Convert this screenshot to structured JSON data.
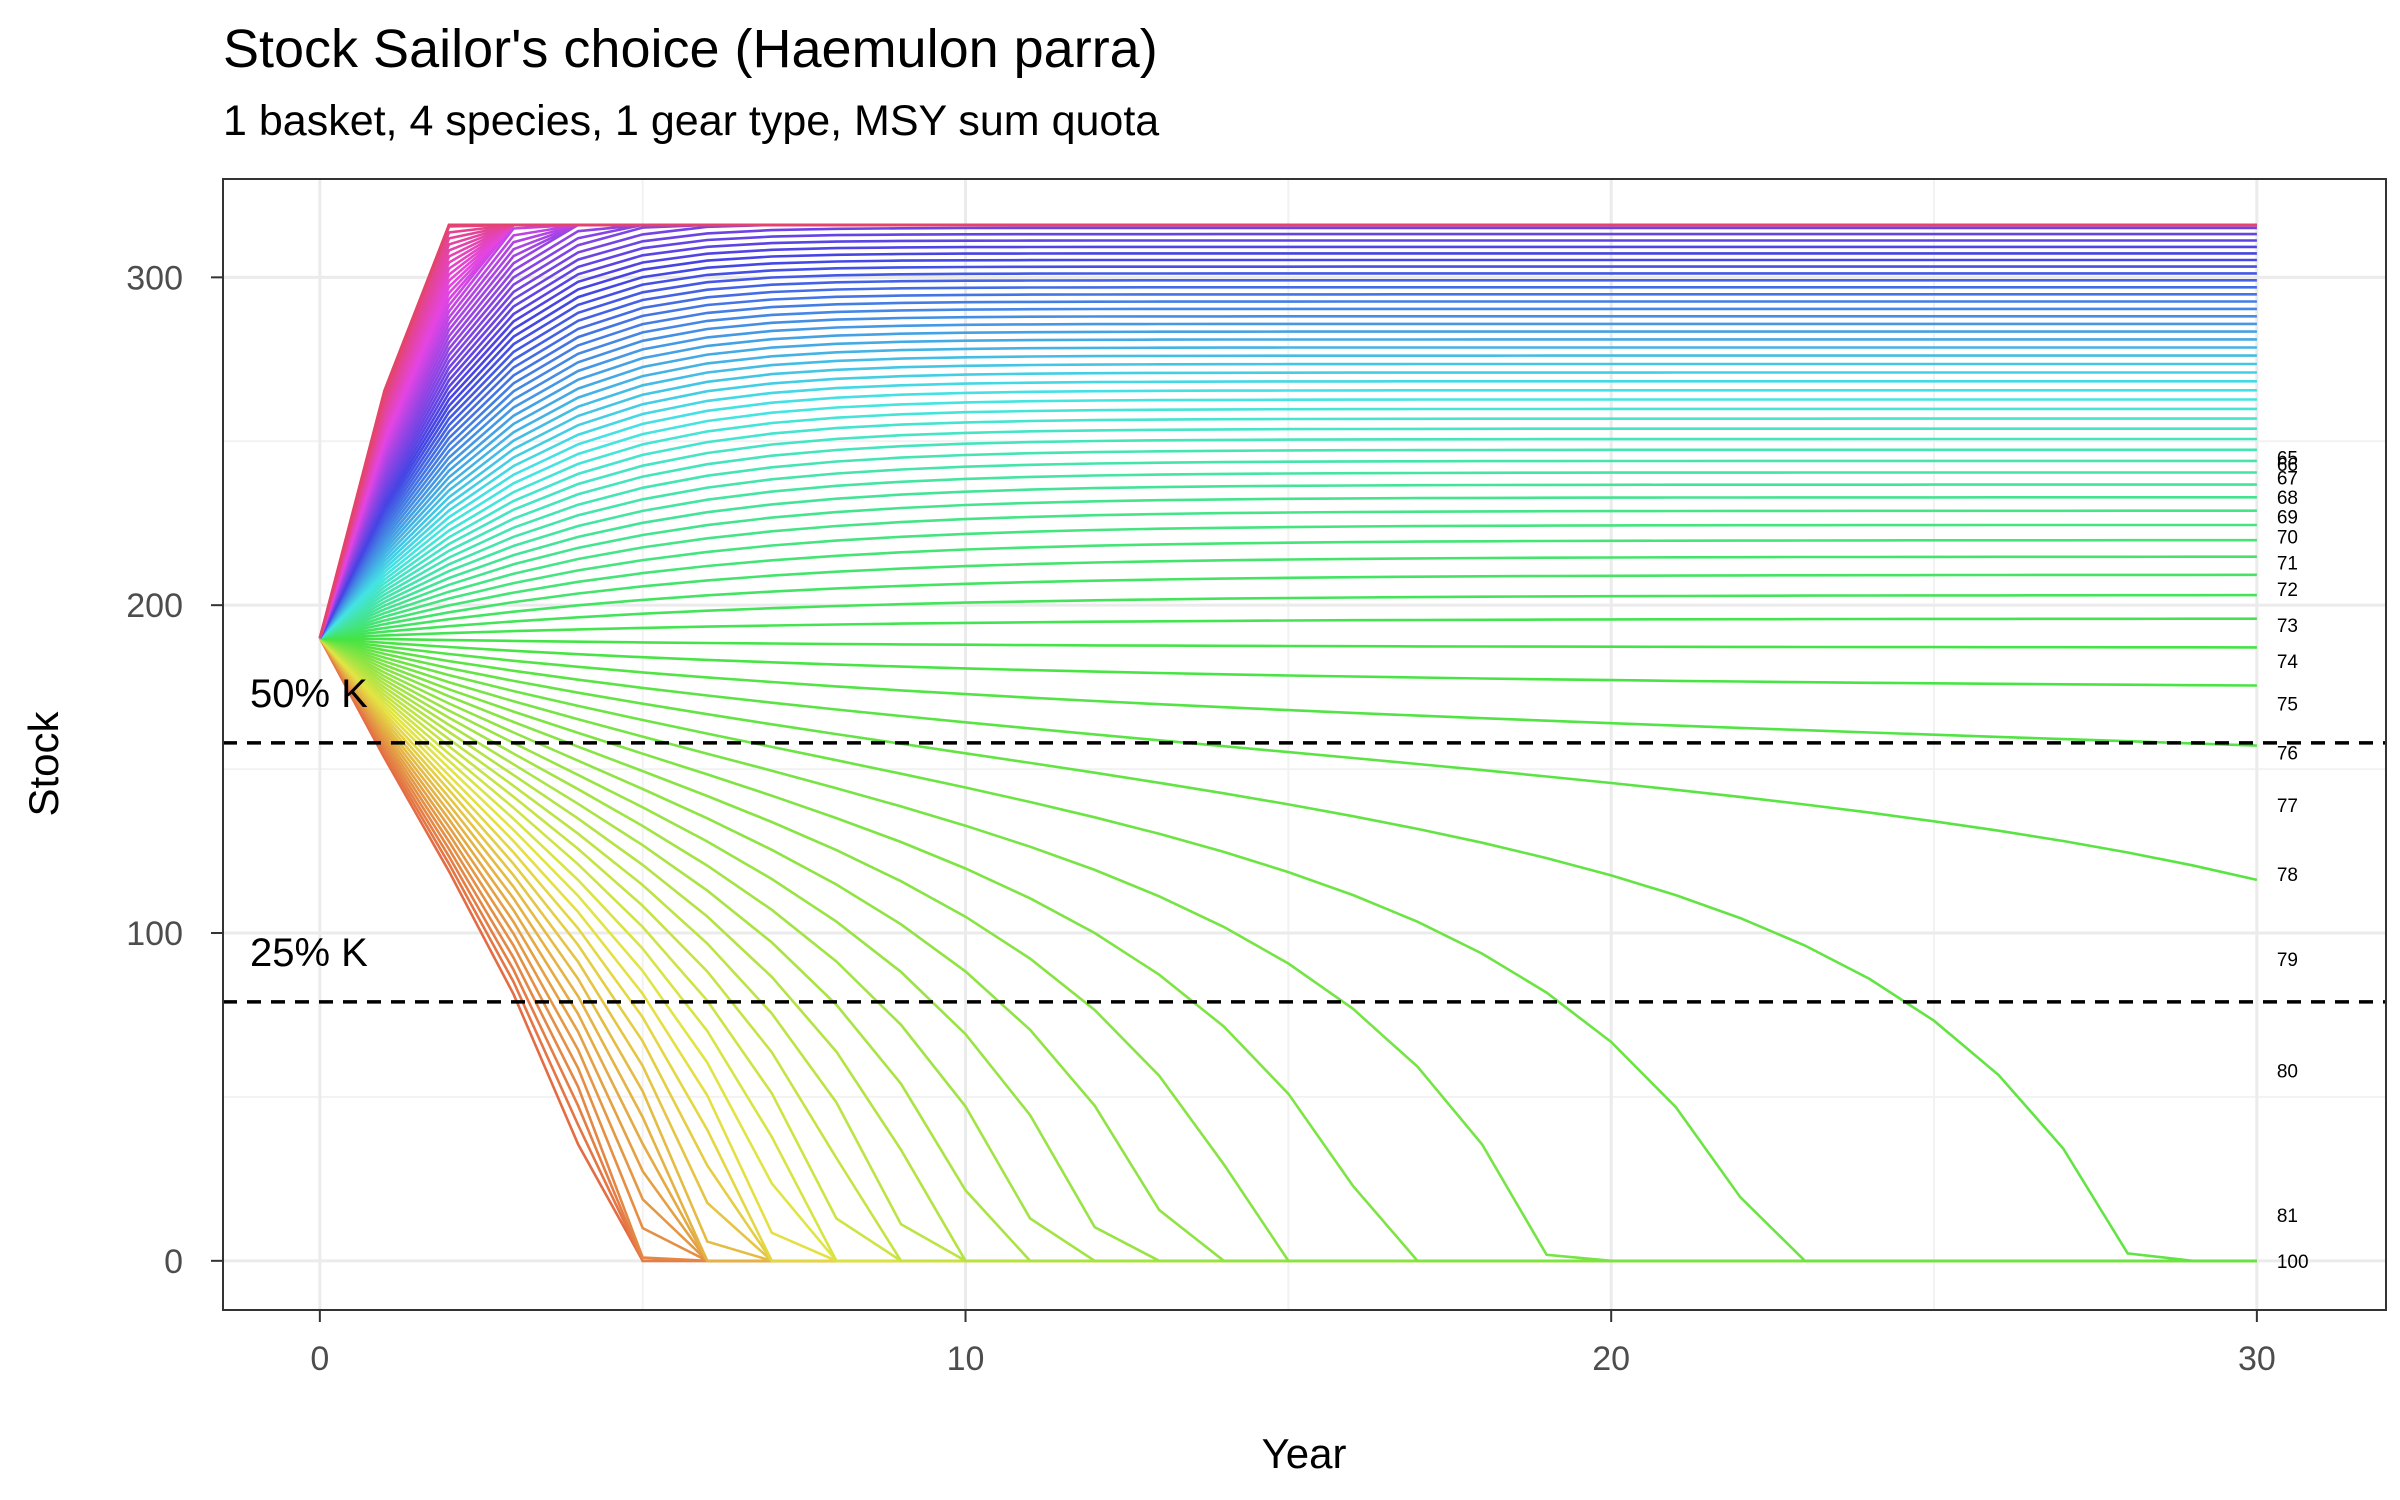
{
  "title": "Stock Sailor's choice (Haemulon parra)",
  "subtitle": "1 basket, 4 species, 1 gear type, MSY sum quota",
  "colors": {
    "background": "#ffffff",
    "grid": "#ebebeb",
    "panel_border": "#333333",
    "reference_line": "#000000"
  },
  "chart_data": {
    "type": "line",
    "title": "Stock Sailor's choice (Haemulon parra)",
    "subtitle": "1 basket, 4 species, 1 gear type, MSY sum quota",
    "xlabel": "Year",
    "ylabel": "Stock",
    "xlim": [
      -1.5,
      32
    ],
    "ylim": [
      -15,
      330
    ],
    "x_ticks": [
      0,
      10,
      20,
      30
    ],
    "y_ticks": [
      0,
      100,
      200,
      300
    ],
    "grid": true,
    "legend": "none",
    "carrying_capacity_K": 316,
    "initial_stock": 190,
    "years": [
      0,
      30
    ],
    "reference_lines": [
      {
        "label": "50% K",
        "y": 158
      },
      {
        "label": "25% K",
        "y": 79
      }
    ],
    "series_count": 100,
    "end_labels": [
      {
        "label": "65",
        "value": 245
      },
      {
        "label": "66",
        "value": 243
      },
      {
        "label": "67",
        "value": 239
      },
      {
        "label": "68",
        "value": 233
      },
      {
        "label": "69",
        "value": 227
      },
      {
        "label": "70",
        "value": 221
      },
      {
        "label": "71",
        "value": 213
      },
      {
        "label": "72",
        "value": 205
      },
      {
        "label": "73",
        "value": 194
      },
      {
        "label": "74",
        "value": 183
      },
      {
        "label": "75",
        "value": 170
      },
      {
        "label": "76",
        "value": 155
      },
      {
        "label": "77",
        "value": 139
      },
      {
        "label": "78",
        "value": 118
      },
      {
        "label": "79",
        "value": 92
      },
      {
        "label": "80",
        "value": 58
      },
      {
        "label": "81",
        "value": 14
      },
      {
        "label": "100",
        "value": 0
      }
    ]
  }
}
